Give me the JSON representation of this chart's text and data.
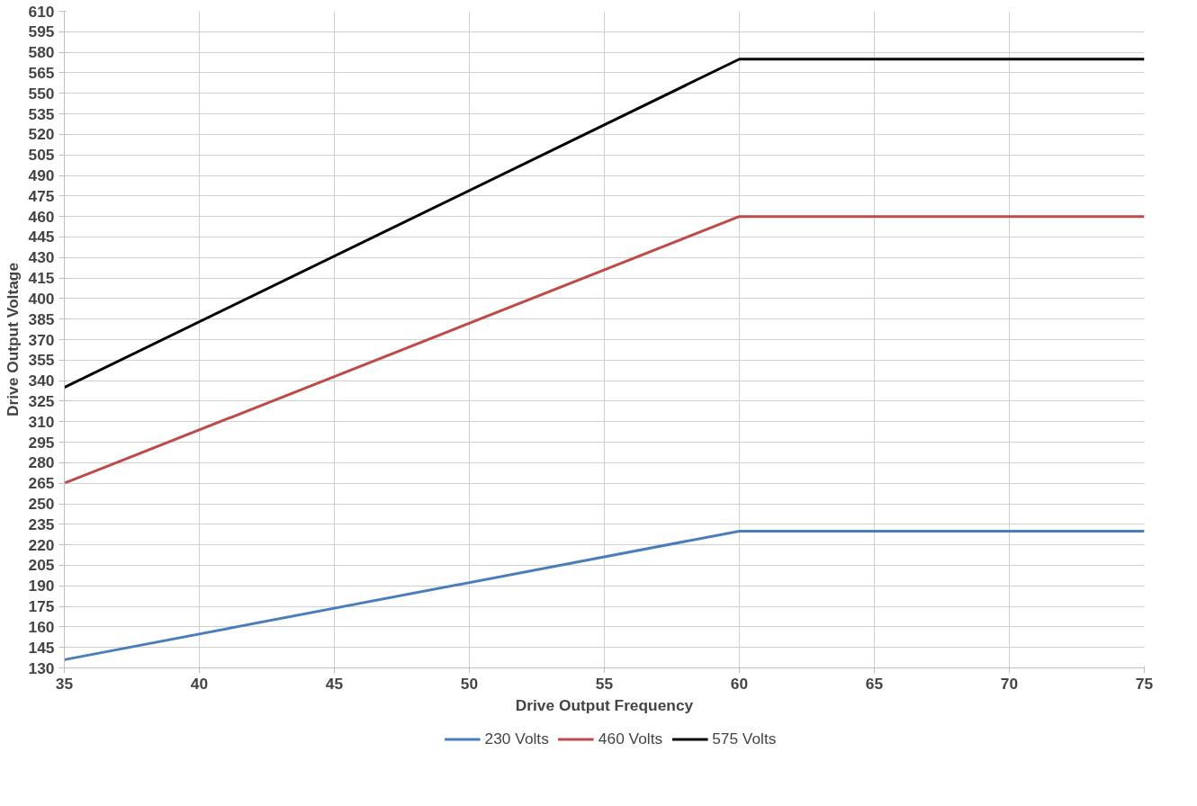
{
  "chart_data": {
    "type": "line",
    "xlabel": "Drive Output Frequency",
    "ylabel": "Drive Output Voltage",
    "x": [
      35,
      60,
      75
    ],
    "series": [
      {
        "name": "230 Volts",
        "color": "#4a7ebb",
        "values": [
          136,
          230,
          230
        ]
      },
      {
        "name": "460 Volts",
        "color": "#be4b48",
        "values": [
          265,
          460,
          460
        ]
      },
      {
        "name": "575 Volts",
        "color": "#000000",
        "values": [
          335,
          575,
          575
        ]
      }
    ],
    "xlim": [
      35,
      75
    ],
    "xticks": [
      35,
      40,
      45,
      50,
      55,
      60,
      65,
      70,
      75
    ],
    "ylim": [
      130,
      610
    ],
    "yticks": [
      130,
      145,
      160,
      175,
      190,
      205,
      220,
      235,
      250,
      265,
      280,
      295,
      310,
      325,
      340,
      355,
      370,
      385,
      400,
      415,
      430,
      445,
      460,
      475,
      490,
      505,
      520,
      535,
      550,
      565,
      580,
      595,
      610
    ],
    "grid": true,
    "legend": "bottom",
    "marker": "none",
    "line_style": "solid"
  }
}
